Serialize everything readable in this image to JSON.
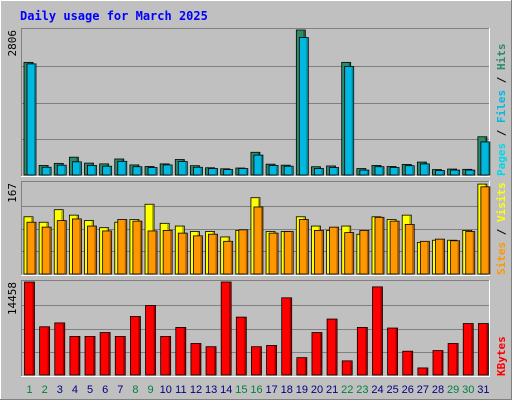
{
  "title": "Daily usage for March 2025",
  "colors": {
    "page_bg": "#c0c0c0",
    "plot_bg": "#c0c0c0",
    "title": "#0000ff",
    "pages": "#00d8e8",
    "pages_dark": "#008898",
    "files": "#00b8e0",
    "hits": "#2e8b6a",
    "hits_dark": "#146040",
    "visits": "#ffff00",
    "visits_dark": "#b0b000",
    "sites": "#ff9800",
    "sites_dark": "#b06000",
    "kbytes": "#ff0000",
    "kbytes_dark": "#a00000",
    "weekend_day": "#008040",
    "weekday": "#000080"
  },
  "chart_data": [
    {
      "type": "bar",
      "name": "hits-pages-files",
      "ymax_label": "2806",
      "ylim": [
        0,
        2806
      ],
      "legend": [
        {
          "label": "Pages",
          "color_key": "pages"
        },
        {
          "label": "Files",
          "color_key": "files"
        },
        {
          "label": "Hits",
          "color_key": "hits"
        }
      ],
      "categories": [
        "1",
        "2",
        "3",
        "4",
        "5",
        "6",
        "7",
        "8",
        "9",
        "10",
        "11",
        "12",
        "13",
        "14",
        "15",
        "16",
        "17",
        "18",
        "19",
        "20",
        "21",
        "22",
        "23",
        "24",
        "25",
        "26",
        "27",
        "28",
        "29",
        "30",
        "31"
      ],
      "series": [
        {
          "name": "Hits",
          "color_key": "hits",
          "values": [
            2180,
            185,
            225,
            345,
            230,
            215,
            310,
            195,
            165,
            215,
            300,
            180,
            140,
            120,
            135,
            440,
            210,
            190,
            2806,
            160,
            175,
            2180,
            125,
            185,
            165,
            205,
            250,
            105,
            115,
            110,
            740
          ]
        },
        {
          "name": "Files",
          "color_key": "files",
          "values": [
            2150,
            150,
            190,
            255,
            185,
            170,
            265,
            160,
            145,
            195,
            260,
            150,
            125,
            105,
            125,
            385,
            185,
            170,
            2660,
            125,
            145,
            2100,
            95,
            160,
            145,
            180,
            215,
            85,
            95,
            95,
            640
          ]
        }
      ]
    },
    {
      "type": "bar",
      "name": "visits-sites",
      "ymax_label": "167",
      "ylim": [
        0,
        167
      ],
      "legend": [
        {
          "label": "Sites",
          "color_key": "sites"
        },
        {
          "label": "Visits",
          "color_key": "visits"
        }
      ],
      "categories": [
        "1",
        "2",
        "3",
        "4",
        "5",
        "6",
        "7",
        "8",
        "9",
        "10",
        "11",
        "12",
        "13",
        "14",
        "15",
        "16",
        "17",
        "18",
        "19",
        "20",
        "21",
        "22",
        "23",
        "24",
        "25",
        "26",
        "27",
        "28",
        "29",
        "30",
        "31"
      ],
      "series": [
        {
          "name": "Visits",
          "color_key": "visits",
          "values": [
            105,
            95,
            118,
            108,
            98,
            85,
            95,
            100,
            128,
            93,
            88,
            78,
            78,
            68,
            80,
            140,
            78,
            78,
            105,
            88,
            80,
            88,
            73,
            105,
            100,
            108,
            58,
            62,
            62,
            80,
            165
          ]
        },
        {
          "name": "Sites",
          "color_key": "sites",
          "values": [
            95,
            86,
            98,
            101,
            88,
            79,
            100,
            97,
            79,
            80,
            75,
            70,
            73,
            60,
            81,
            123,
            75,
            78,
            100,
            80,
            86,
            76,
            80,
            104,
            97,
            91,
            60,
            64,
            61,
            78,
            160
          ]
        }
      ]
    },
    {
      "type": "bar",
      "name": "kbytes",
      "ymax_label": "14458",
      "ylim": [
        0,
        14458
      ],
      "legend": [
        {
          "label": "KBytes",
          "color_key": "kbytes"
        }
      ],
      "categories": [
        "1",
        "2",
        "3",
        "4",
        "5",
        "6",
        "7",
        "8",
        "9",
        "10",
        "11",
        "12",
        "13",
        "14",
        "15",
        "16",
        "17",
        "18",
        "19",
        "20",
        "21",
        "22",
        "23",
        "24",
        "25",
        "26",
        "27",
        "28",
        "29",
        "30",
        "31"
      ],
      "series": [
        {
          "name": "KBytes",
          "color_key": "kbytes",
          "values": [
            14458,
            7500,
            8100,
            6000,
            6000,
            6600,
            6000,
            9100,
            10800,
            6000,
            7400,
            4900,
            4400,
            14458,
            9000,
            4400,
            4600,
            12000,
            2700,
            6600,
            8700,
            2200,
            7400,
            13700,
            7300,
            3700,
            1100,
            3800,
            4900,
            8000,
            8000
          ]
        }
      ]
    }
  ],
  "x_labels": [
    {
      "text": "1",
      "weekend": true
    },
    {
      "text": "2",
      "weekend": true
    },
    {
      "text": "3",
      "weekend": false
    },
    {
      "text": "4",
      "weekend": false
    },
    {
      "text": "5",
      "weekend": false
    },
    {
      "text": "6",
      "weekend": false
    },
    {
      "text": "7",
      "weekend": false
    },
    {
      "text": "8",
      "weekend": true
    },
    {
      "text": "9",
      "weekend": true
    },
    {
      "text": "10",
      "weekend": false
    },
    {
      "text": "11",
      "weekend": false
    },
    {
      "text": "12",
      "weekend": false
    },
    {
      "text": "13",
      "weekend": false
    },
    {
      "text": "14",
      "weekend": false
    },
    {
      "text": "15",
      "weekend": true
    },
    {
      "text": "16",
      "weekend": true
    },
    {
      "text": "17",
      "weekend": false
    },
    {
      "text": "18",
      "weekend": false
    },
    {
      "text": "19",
      "weekend": false
    },
    {
      "text": "20",
      "weekend": false
    },
    {
      "text": "21",
      "weekend": false
    },
    {
      "text": "22",
      "weekend": true
    },
    {
      "text": "23",
      "weekend": true
    },
    {
      "text": "24",
      "weekend": false
    },
    {
      "text": "25",
      "weekend": false
    },
    {
      "text": "26",
      "weekend": false
    },
    {
      "text": "27",
      "weekend": false
    },
    {
      "text": "28",
      "weekend": false
    },
    {
      "text": "29",
      "weekend": true
    },
    {
      "text": "30",
      "weekend": true
    },
    {
      "text": "31",
      "weekend": false
    }
  ]
}
